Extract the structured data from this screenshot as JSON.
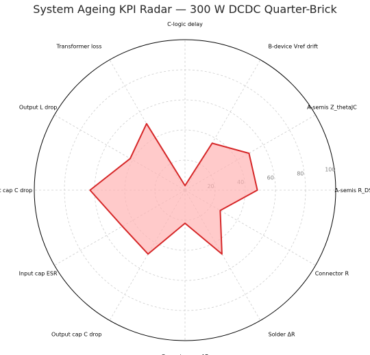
{
  "chart_data": {
    "type": "radar",
    "title": "System Ageing KPI Radar — 300 W DCDC Quarter-Brick",
    "categories": [
      "A-semis R_DS(on)",
      "A-semis Z_thetaJC",
      "B-device Vref drift",
      "C-logic delay",
      "Transformer loss",
      "Output L drop",
      "Input cap C drop",
      "Input cap ESR",
      "Output cap C drop",
      "Current sense ΔR",
      "Solder ΔR",
      "Connector R"
    ],
    "series": [
      {
        "values": [
          48,
          49,
          36,
          3,
          51,
          42,
          63,
          48,
          49,
          22,
          49,
          27
        ]
      }
    ],
    "rlim": [
      0,
      100
    ],
    "r_ticks": [
      20,
      40,
      60,
      80,
      100
    ],
    "r_tick_labels": [
      "20",
      "40",
      "60",
      "80",
      "100"
    ],
    "grid": true,
    "colors": {
      "line": "#d62728",
      "fill": "#ffb3b3",
      "grid": "#cccccc",
      "frame": "#000000"
    }
  }
}
